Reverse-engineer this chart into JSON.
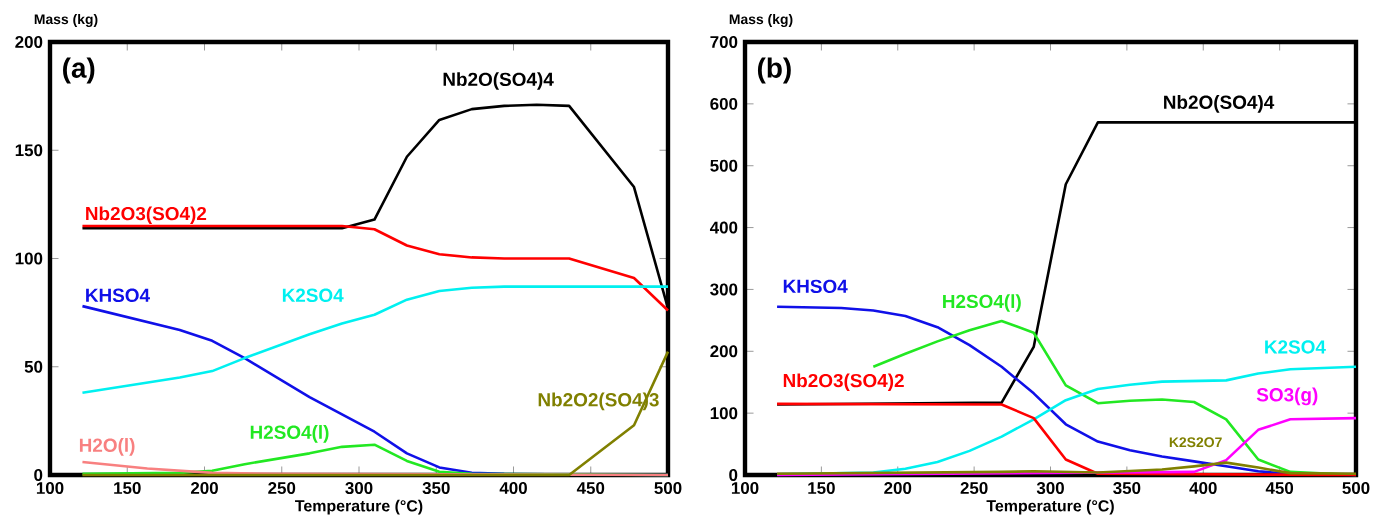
{
  "chart_data": [
    {
      "type": "line",
      "title": "(a)",
      "xlabel": "Temperature (°C)",
      "ylabel": "Mass (kg)",
      "xlim": [
        100,
        500
      ],
      "ylim": [
        0,
        200
      ],
      "xticks": [
        100,
        150,
        200,
        250,
        300,
        350,
        400,
        450,
        500
      ],
      "yticks": [
        0,
        50,
        100,
        150,
        200
      ],
      "line_style": "solid",
      "series": [
        {
          "name": "Nb2O(SO4)4",
          "color": "#000000",
          "x": [
            121,
            289,
            310,
            331,
            352,
            373,
            394,
            415,
            436,
            478,
            500
          ],
          "values": [
            114,
            114,
            118,
            147,
            164,
            169,
            170.5,
            171,
            170.5,
            133,
            77
          ]
        },
        {
          "name": "Nb2O3(SO4)2",
          "color": "#ff0000",
          "x": [
            121,
            289,
            310,
            331,
            352,
            373,
            394,
            436,
            478,
            500
          ],
          "values": [
            115,
            115,
            113.5,
            106,
            102,
            100.5,
            100,
            100,
            91,
            76
          ]
        },
        {
          "name": "KHSO4",
          "color": "#1010e8",
          "x": [
            121,
            184,
            205,
            226,
            268,
            289,
            310,
            331,
            352,
            373,
            394,
            500
          ],
          "values": [
            78,
            67,
            62,
            54,
            36,
            28,
            20,
            10,
            3.5,
            1,
            0.5,
            0
          ]
        },
        {
          "name": "K2SO4",
          "color": "#00f0f0",
          "x": [
            121,
            184,
            205,
            226,
            268,
            289,
            310,
            331,
            352,
            373,
            394,
            500
          ],
          "values": [
            38,
            45,
            48,
            54,
            65,
            70,
            74,
            81,
            85,
            86.5,
            87,
            87
          ]
        },
        {
          "name": "H2SO4(l)",
          "color": "#22e822",
          "x": [
            121,
            184,
            205,
            226,
            268,
            289,
            310,
            331,
            352,
            373,
            500
          ],
          "values": [
            0.5,
            1,
            2,
            5,
            10,
            13,
            14,
            6.5,
            1.5,
            0.5,
            0
          ]
        },
        {
          "name": "H2O(l)",
          "color": "#f88080",
          "x": [
            121,
            163,
            205,
            247,
            500
          ],
          "values": [
            6,
            3,
            1,
            0.5,
            0
          ]
        },
        {
          "name": "Nb2O2(SO4)3",
          "color": "#808000",
          "x": [
            121,
            436,
            478,
            500
          ],
          "values": [
            0,
            0,
            23,
            57
          ]
        }
      ]
    },
    {
      "type": "line",
      "title": "(b)",
      "xlabel": "Temperature (°C)",
      "ylabel": "Mass (kg)",
      "xlim": [
        100,
        500
      ],
      "ylim": [
        0,
        700
      ],
      "xticks": [
        100,
        150,
        200,
        250,
        300,
        350,
        400,
        450,
        500
      ],
      "yticks": [
        0,
        100,
        200,
        300,
        400,
        500,
        600,
        700
      ],
      "line_style": "solid",
      "series": [
        {
          "name": "Nb2O(SO4)4",
          "color": "#000000",
          "x": [
            121,
            268,
            289,
            310,
            331,
            500
          ],
          "values": [
            114,
            117,
            207,
            470,
            570,
            570
          ]
        },
        {
          "name": "KHSO4",
          "color": "#1010e8",
          "x": [
            121,
            163,
            184,
            205,
            226,
            247,
            268,
            289,
            310,
            331,
            352,
            373,
            394,
            415,
            436,
            457,
            500
          ],
          "values": [
            272,
            270,
            266,
            257,
            239,
            210,
            175,
            132,
            82,
            54,
            40,
            30,
            22,
            14,
            6,
            2,
            0
          ]
        },
        {
          "name": "H2SO4(l)",
          "color": "#22e822",
          "x": [
            184,
            205,
            226,
            247,
            268,
            289,
            310,
            331,
            352,
            373,
            394,
            415,
            436,
            457,
            500
          ],
          "values": [
            175,
            196,
            216,
            234,
            249,
            230,
            145,
            116,
            120,
            122,
            118,
            90,
            25,
            5,
            0
          ]
        },
        {
          "name": "K2SO4",
          "color": "#00f0f0",
          "x": [
            121,
            184,
            205,
            226,
            247,
            268,
            289,
            310,
            331,
            352,
            373,
            394,
            415,
            436,
            457,
            500
          ],
          "values": [
            1,
            4,
            10,
            21,
            39,
            62,
            90,
            121,
            139,
            146,
            151,
            152,
            153,
            164,
            171,
            175
          ]
        },
        {
          "name": "Nb2O3(SO4)2",
          "color": "#ff0000",
          "x": [
            121,
            268,
            289,
            310,
            331,
            500
          ],
          "values": [
            115,
            114,
            92,
            25,
            2,
            0
          ]
        },
        {
          "name": "SO3(g)",
          "color": "#ff00ff",
          "x": [
            121,
            394,
            415,
            436,
            457,
            500
          ],
          "values": [
            0,
            5,
            24,
            73,
            90,
            92
          ]
        },
        {
          "name": "K2S2O7",
          "color": "#808000",
          "x": [
            121,
            268,
            289,
            331,
            373,
            394,
            415,
            436,
            457,
            500
          ],
          "values": [
            2,
            5,
            6,
            4,
            9,
            14,
            20,
            12,
            3,
            2
          ]
        }
      ]
    }
  ]
}
